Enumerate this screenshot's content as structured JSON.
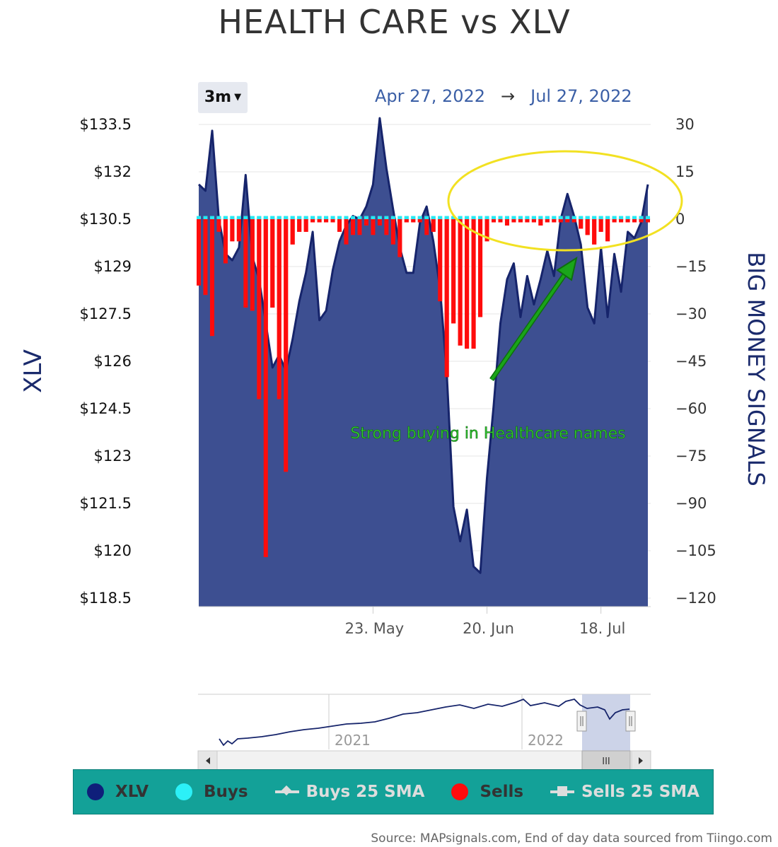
{
  "title": "HEALTH CARE vs XLV",
  "range_selector": {
    "label": "3m"
  },
  "date_range": {
    "from": "Apr 27, 2022",
    "arrow": "→",
    "to": "Jul 27, 2022"
  },
  "annotation": {
    "text": "Strong buying in Healthcare names"
  },
  "source": "Source: MAPsignals.com, End of day data sourced from Tiingo.com",
  "colors": {
    "xlv_fill": "#3d4f91",
    "xlv_line": "#16246b",
    "buys": "#27e8f2",
    "sells": "#ff0c0c",
    "annotation": "#1aa51a",
    "ellipse": "#f2e122",
    "legend_bg": "#13a198",
    "axis_title": "#1a2a6c",
    "navigator_mask": "#c3cbe4"
  },
  "navigator": {
    "years": [
      "2021",
      "2022"
    ],
    "scroll_icon": "III"
  },
  "legend": [
    {
      "label": "XLV",
      "color": "#0f1f7a",
      "marker": "dot"
    },
    {
      "label": "Buys",
      "color": "#2cf0f7",
      "marker": "dot"
    },
    {
      "label": "Buys 25 SMA",
      "color": "#dddddd",
      "marker": "line-diamond"
    },
    {
      "label": "Sells",
      "color": "#ff0c0c",
      "marker": "dot"
    },
    {
      "label": "Sells 25 SMA",
      "color": "#dddddd",
      "marker": "line-square"
    }
  ],
  "chart_data": {
    "type": "area",
    "title": "HEALTH CARE vs XLV",
    "x_ticks": [
      "23. May",
      "20. Jun",
      "18. Jul"
    ],
    "left_axis": {
      "title": "XLV",
      "ticks": [
        "$133.5",
        "$132",
        "$130.5",
        "$129",
        "$127.5",
        "$126",
        "$124.5",
        "$123",
        "$121.5",
        "$120",
        "$118.5"
      ],
      "range": [
        118.5,
        133.5
      ]
    },
    "right_axis": {
      "title": "BIG MONEY SIGNALS",
      "ticks": [
        "30",
        "15",
        "0",
        "−15",
        "−30",
        "−45",
        "−60",
        "−75",
        "−90",
        "−105",
        "−120"
      ],
      "range": [
        -120,
        30
      ]
    },
    "series": [
      {
        "name": "XLV",
        "values": [
          131.6,
          131.4,
          133.3,
          130.5,
          129.4,
          129.2,
          129.6,
          131.9,
          129.3,
          128.6,
          127.2,
          125.8,
          126.2,
          125.7,
          126.7,
          127.9,
          128.8,
          130.1,
          127.3,
          127.6,
          128.9,
          129.8,
          130.3,
          130.6,
          130.5,
          130.9,
          131.6,
          133.7,
          132.1,
          130.8,
          129.6,
          128.8,
          128.8,
          130.4,
          130.9,
          129.8,
          128.3,
          125.6,
          121.4,
          120.3,
          121.3,
          119.5,
          119.3,
          122.3,
          124.6,
          127.2,
          128.6,
          129.1,
          127.4,
          128.7,
          127.8,
          128.6,
          129.5,
          128.7,
          130.5,
          131.3,
          130.6,
          129.7,
          127.7,
          127.2,
          129.6,
          127.4,
          129.4,
          128.2,
          130.1,
          129.9,
          130.4,
          131.6
        ]
      },
      {
        "name": "Buys",
        "values": [
          1,
          1,
          1,
          1,
          1,
          1,
          1,
          1,
          1,
          1,
          1,
          1,
          1,
          1,
          1,
          1,
          1,
          1,
          1,
          1,
          1,
          1,
          1,
          1,
          1,
          1,
          1,
          1,
          1,
          1,
          1,
          1,
          1,
          1,
          1,
          1,
          1,
          1,
          1,
          1,
          1,
          1,
          1,
          1,
          1,
          1,
          1,
          1,
          1,
          1,
          1,
          1,
          1,
          1,
          1,
          1,
          1,
          1,
          1,
          1,
          1,
          1,
          1,
          1,
          1,
          1,
          1,
          1
        ]
      },
      {
        "name": "Sells",
        "values": [
          -21,
          -24,
          -37,
          -4,
          -14,
          -7,
          -7,
          -28,
          -29,
          -57,
          -107,
          -28,
          -57,
          -80,
          -8,
          -4,
          -4,
          -1,
          -1,
          -1,
          -1,
          -4,
          -8,
          -5,
          -5,
          -2,
          -5,
          -2,
          -5,
          -8,
          -12,
          -1,
          -1,
          -1,
          -5,
          -4,
          -26,
          -50,
          -33,
          -40,
          -41,
          -41,
          -31,
          -7,
          -1,
          -1,
          -2,
          -1,
          -1,
          -1,
          -1,
          -2,
          -1,
          -1,
          -1,
          -1,
          -1,
          -3,
          -5,
          -8,
          -4,
          -7,
          -1,
          -1,
          -1,
          -1,
          -1,
          -1
        ]
      }
    ],
    "grid": true,
    "legend_position": "bottom"
  }
}
